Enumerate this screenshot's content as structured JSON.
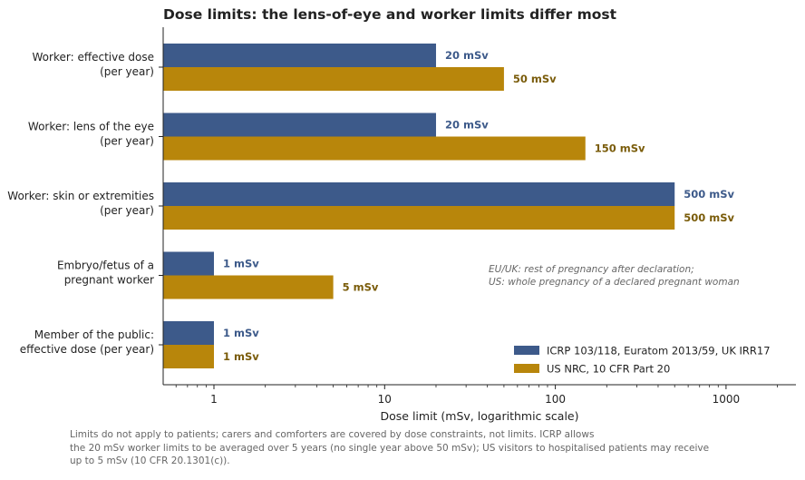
{
  "chart_data": {
    "type": "bar",
    "orientation": "horizontal",
    "title": "Dose limits: the lens-of-eye and worker limits differ most",
    "xlabel": "Dose limit (mSv, logarithmic scale)",
    "ylabel": "",
    "x_scale": "log",
    "xlim": [
      0.5,
      2500
    ],
    "x_ticks": [
      1,
      10,
      100,
      1000
    ],
    "x_tick_labels": [
      "1",
      "10",
      "100",
      "1000"
    ],
    "grid": false,
    "legend_position": "bottom-right",
    "categories": [
      [
        "Worker: effective dose",
        "(per year)"
      ],
      [
        "Worker: lens of the eye",
        "(per year)"
      ],
      [
        "Worker: skin or extremities",
        "(per year)"
      ],
      [
        "Embryo/fetus of a",
        "pregnant worker"
      ],
      [
        "Member of the public:",
        "effective dose (per year)"
      ]
    ],
    "series": [
      {
        "name": "ICRP 103/118, Euratom 2013/59, UK IRR17",
        "color": "#3d5a8a",
        "label_color": "#3d5a8a",
        "values": [
          20,
          20,
          500,
          1,
          1
        ],
        "data_labels": [
          "20 mSv",
          "20 mSv",
          "500 mSv",
          "1 mSv",
          "1 mSv"
        ]
      },
      {
        "name": "US NRC, 10 CFR Part 20",
        "color": "#b8860b",
        "label_color": "#7a5c0a",
        "values": [
          50,
          150,
          500,
          5,
          1
        ],
        "data_labels": [
          "50 mSv",
          "150 mSv",
          "500 mSv",
          "5 mSv",
          "1 mSv"
        ]
      }
    ],
    "annotation": [
      "EU/UK: rest of pregnancy after declaration;",
      "US: whole pregnancy of a declared pregnant woman"
    ]
  },
  "footnote": [
    "Limits do not apply to patients; carers and comforters are covered by dose constraints, not limits. ICRP allows",
    "the 20 mSv worker limits to be averaged over 5 years (no single year above 50 mSv); US visitors to hospitalised patients may receive",
    "up to 5 mSv (10 CFR 20.1301(c))."
  ]
}
